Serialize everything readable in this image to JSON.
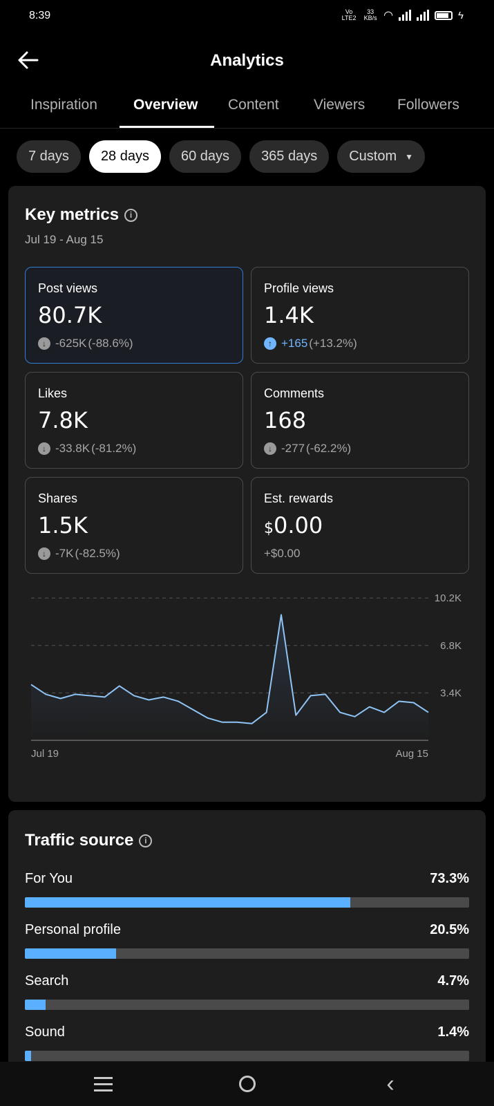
{
  "status_bar": {
    "time": "8:39",
    "net_label": "Vo LTE2",
    "speed": "33 KB/s"
  },
  "header": {
    "title": "Analytics"
  },
  "tabs": [
    {
      "label": "Inspiration"
    },
    {
      "label": "Overview",
      "active": true
    },
    {
      "label": "Content"
    },
    {
      "label": "Viewers"
    },
    {
      "label": "Followers"
    }
  ],
  "ranges": [
    {
      "label": "7 days"
    },
    {
      "label": "28 days",
      "active": true
    },
    {
      "label": "60 days"
    },
    {
      "label": "365 days"
    },
    {
      "label": "Custom"
    }
  ],
  "key_metrics": {
    "title": "Key metrics",
    "date_range": "Jul 19 - Aug 15",
    "metrics": [
      {
        "label": "Post views",
        "value": "80.7K",
        "change_num": "-625K",
        "change_pct": "(-88.6%)",
        "direction": "down"
      },
      {
        "label": "Profile views",
        "value": "1.4K",
        "change_num": "+165",
        "change_pct": "(+13.2%)",
        "direction": "up"
      },
      {
        "label": "Likes",
        "value": "7.8K",
        "change_num": "-33.8K",
        "change_pct": "(-81.2%)",
        "direction": "down"
      },
      {
        "label": "Comments",
        "value": "168",
        "change_num": "-277",
        "change_pct": "(-62.2%)",
        "direction": "down"
      },
      {
        "label": "Shares",
        "value": "1.5K",
        "change_num": "-7K",
        "change_pct": "(-82.5%)",
        "direction": "down"
      },
      {
        "label": "Est. rewards",
        "currency": "$",
        "value": "0.00",
        "change_num": "+$0.00",
        "change_pct": "",
        "direction": "none"
      }
    ]
  },
  "chart_data": {
    "type": "area",
    "title": "",
    "x_labels": [
      "Jul 19",
      "Aug 15"
    ],
    "y_ticks": [
      "10.2K",
      "6.8K",
      "3.4K"
    ],
    "y_tick_values": [
      10200,
      6800,
      3400
    ],
    "ylim": [
      0,
      11000
    ],
    "grid": true,
    "values": [
      4000,
      3300,
      3000,
      3300,
      3200,
      3100,
      3900,
      3200,
      2900,
      3100,
      2800,
      2200,
      1600,
      1300,
      1300,
      1200,
      2000,
      9000,
      1800,
      3200,
      3300,
      2000,
      1700,
      2400,
      2000,
      2800,
      2700,
      2000
    ]
  },
  "traffic_source": {
    "title": "Traffic source",
    "sources": [
      {
        "name": "For You",
        "pct_label": "73.3%",
        "pct": 73.3
      },
      {
        "name": "Personal profile",
        "pct_label": "20.5%",
        "pct": 20.5
      },
      {
        "name": "Search",
        "pct_label": "4.7%",
        "pct": 4.7
      },
      {
        "name": "Sound",
        "pct_label": "1.4%",
        "pct": 1.4
      }
    ]
  },
  "colors": {
    "accent": "#5ab0ff",
    "selected_border": "#2f7fd6",
    "background": "#000000",
    "card": "#1e1e1e"
  }
}
